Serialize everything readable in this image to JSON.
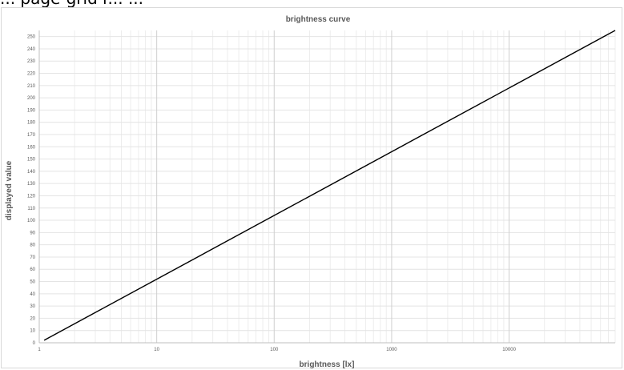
{
  "caption": "... page-grid r... ...",
  "chart_data": {
    "type": "line",
    "title": "brightness curve",
    "xlabel": "brightness [lx]",
    "ylabel": "displayed value",
    "x_scale": "log",
    "xlim": [
      1,
      80000
    ],
    "ylim": [
      0,
      255
    ],
    "x_ticks": [
      1,
      10,
      100,
      1000,
      10000
    ],
    "x_tick_labels": [
      "1",
      "10",
      "100",
      "1000",
      "10000"
    ],
    "y_ticks": [
      0,
      10,
      20,
      30,
      40,
      50,
      60,
      70,
      80,
      90,
      100,
      110,
      120,
      130,
      140,
      150,
      160,
      170,
      180,
      190,
      200,
      210,
      220,
      230,
      240,
      250
    ],
    "grid": true,
    "legend": "none",
    "series": [
      {
        "color": "#000000",
        "x": [
          1.1,
          80000
        ],
        "y": [
          2,
          255
        ]
      }
    ]
  }
}
